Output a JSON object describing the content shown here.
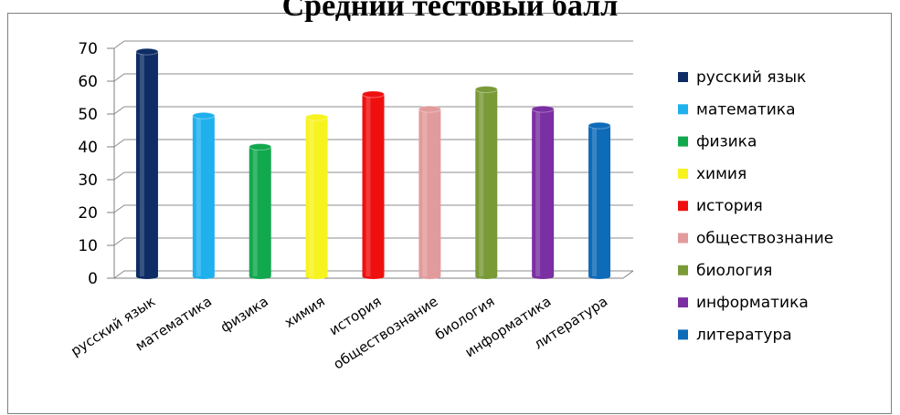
{
  "chart_data": {
    "type": "bar",
    "title": "Средний тестовый балл",
    "categories": [
      "русский язык",
      "математика",
      "физика",
      "химия",
      "история",
      "обществознание",
      "биология",
      "информатика",
      "литература"
    ],
    "values": [
      69,
      49.5,
      40,
      49,
      56,
      51.5,
      57.5,
      51.5,
      46.5
    ],
    "colors": [
      "#0e2c66",
      "#1fb0ee",
      "#12a84e",
      "#f7f31f",
      "#f00f0f",
      "#e29b9c",
      "#7a9a38",
      "#7a2fa2",
      "#0e6bb8"
    ],
    "yticks": [
      0,
      10,
      20,
      30,
      40,
      50,
      60,
      70
    ],
    "ylim": [
      0,
      70
    ],
    "grid": true,
    "legend_position": "right",
    "xlabel": "",
    "ylabel": ""
  }
}
